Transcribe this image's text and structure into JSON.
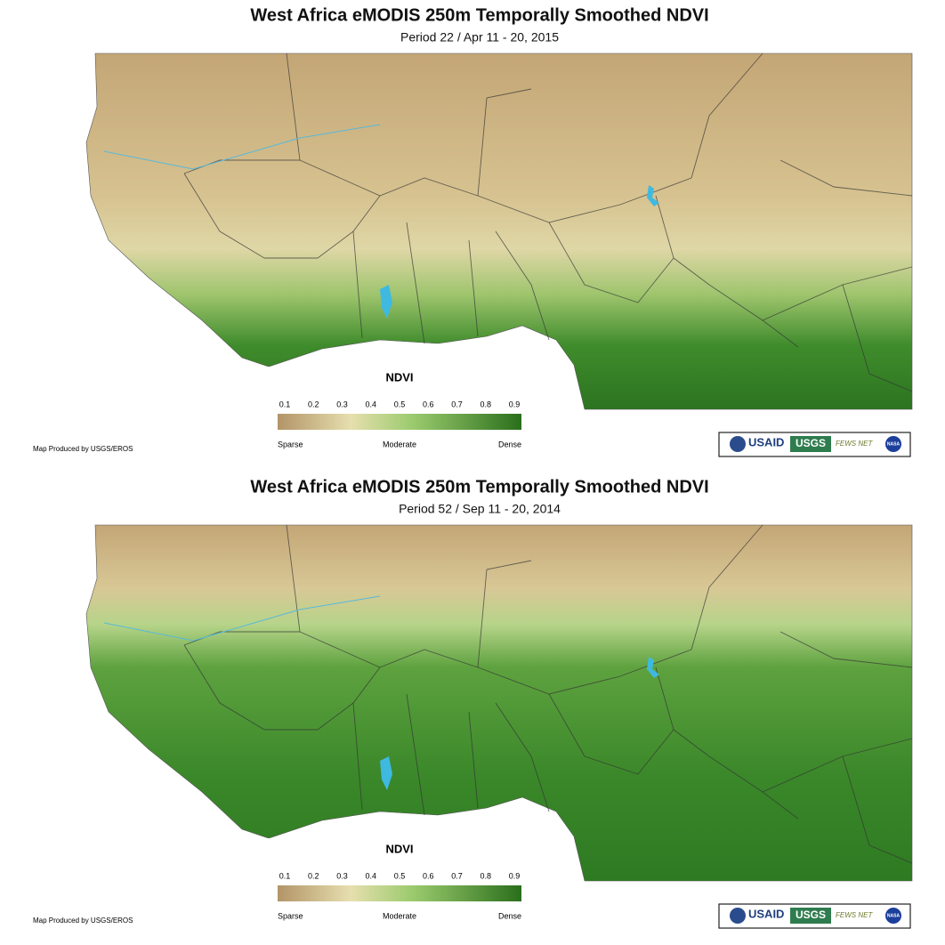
{
  "maps": [
    {
      "title": "West Africa eMODIS 250m Temporally Smoothed NDVI",
      "subtitle": "Period 22 / Apr 11 -  20, 2015",
      "legend": {
        "title": "NDVI",
        "ticks": [
          0.1,
          0.2,
          0.3,
          0.4,
          0.5,
          0.6,
          0.7,
          0.8,
          0.9
        ],
        "labels": [
          "Sparse",
          "Moderate",
          "Dense"
        ]
      },
      "credit": "Map Produced by USGS/EROS",
      "logos": [
        "USAID",
        "USGS",
        "FEWS NET",
        "NASA"
      ]
    },
    {
      "title": "West Africa eMODIS 250m Temporally Smoothed NDVI",
      "subtitle": "Period 52 / Sep 11 -  20, 2014",
      "legend": {
        "title": "NDVI",
        "ticks": [
          0.1,
          0.2,
          0.3,
          0.4,
          0.5,
          0.6,
          0.7,
          0.8,
          0.9
        ],
        "labels": [
          "Sparse",
          "Moderate",
          "Dense"
        ]
      },
      "credit": "Map Produced by USGS/EROS",
      "logos": [
        "USAID",
        "USGS",
        "FEWS NET",
        "NASA"
      ]
    }
  ]
}
